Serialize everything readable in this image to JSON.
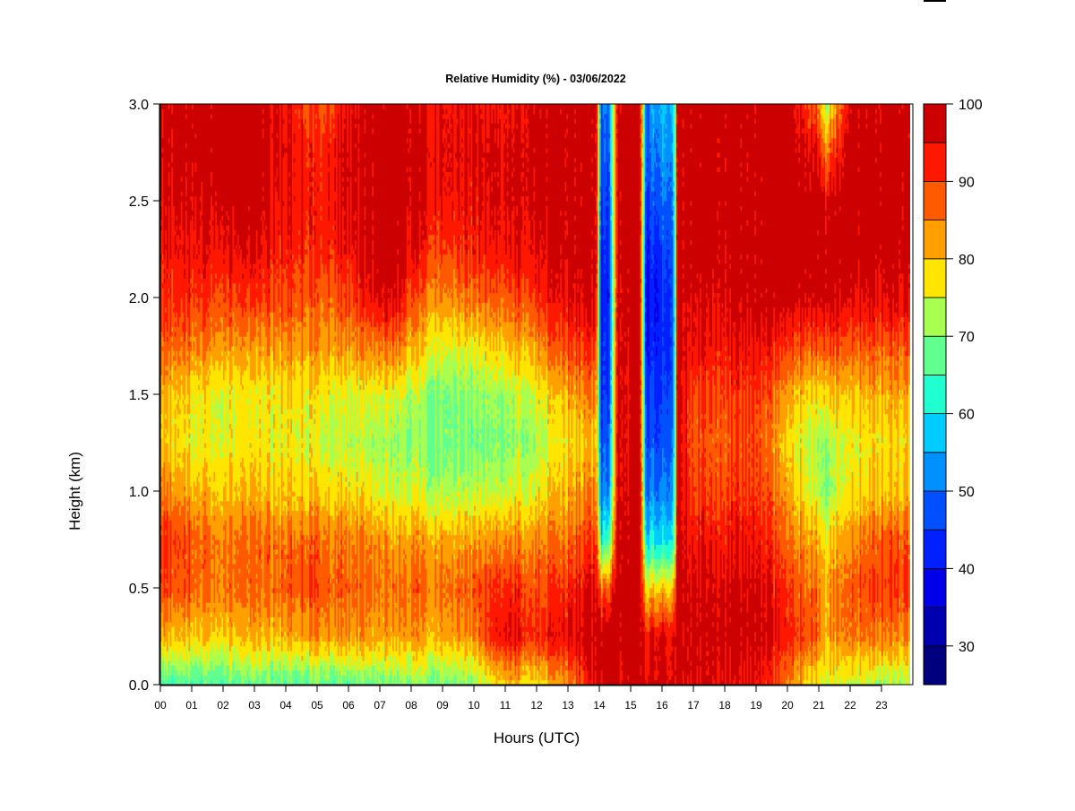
{
  "chart_data": {
    "type": "heatmap",
    "title": "Relative Humidity (%) - 03/06/2022",
    "xlabel": "Hours (UTC)",
    "ylabel": "Height (km)",
    "xlim": [
      0,
      24
    ],
    "ylim": [
      0,
      3
    ],
    "x_ticks": [
      "00",
      "01",
      "02",
      "03",
      "04",
      "05",
      "06",
      "07",
      "08",
      "09",
      "10",
      "11",
      "12",
      "13",
      "14",
      "15",
      "16",
      "17",
      "18",
      "19",
      "20",
      "21",
      "22",
      "23"
    ],
    "y_ticks": [
      "0.0",
      "0.5",
      "1.0",
      "1.5",
      "2.0",
      "2.5",
      "3.0"
    ],
    "colorbar": {
      "range": [
        25,
        100
      ],
      "levels": [
        25,
        30,
        35,
        40,
        45,
        50,
        55,
        60,
        65,
        70,
        75,
        80,
        85,
        90,
        95,
        100
      ],
      "colors": [
        "#00007f",
        "#0000b0",
        "#0000e8",
        "#0020ff",
        "#0050ff",
        "#0090ff",
        "#00ccff",
        "#20ffd0",
        "#60ff90",
        "#a8ff50",
        "#ffe500",
        "#ffa000",
        "#ff5a00",
        "#ff1800",
        "#cc0000",
        "#800000"
      ],
      "tick_labels": [
        "30",
        "40",
        "50",
        "60",
        "70",
        "80",
        "90",
        "100"
      ]
    },
    "profiles": [
      {
        "hour": 0,
        "rh": [
          66,
          82,
          90,
          92,
          86,
          80,
          82,
          88,
          92,
          94,
          96,
          98,
          98
        ]
      },
      {
        "hour": 1,
        "rh": [
          66,
          80,
          88,
          88,
          82,
          77,
          78,
          86,
          92,
          95,
          97,
          99,
          98
        ]
      },
      {
        "hour": 2,
        "rh": [
          66,
          80,
          86,
          86,
          80,
          76,
          76,
          84,
          90,
          95,
          98,
          99,
          99
        ]
      },
      {
        "hour": 3,
        "rh": [
          67,
          80,
          86,
          86,
          80,
          76,
          76,
          82,
          90,
          95,
          98,
          99,
          98
        ]
      },
      {
        "hour": 4,
        "rh": [
          67,
          82,
          88,
          86,
          80,
          77,
          78,
          84,
          90,
          93,
          95,
          96,
          95
        ]
      },
      {
        "hour": 5,
        "rh": [
          68,
          84,
          90,
          88,
          80,
          76,
          78,
          84,
          88,
          92,
          93,
          92,
          88
        ]
      },
      {
        "hour": 6,
        "rh": [
          68,
          84,
          88,
          86,
          79,
          74,
          76,
          84,
          90,
          95,
          97,
          98,
          96
        ]
      },
      {
        "hour": 7,
        "rh": [
          69,
          82,
          86,
          84,
          76,
          72,
          76,
          86,
          96,
          99,
          99,
          99,
          99
        ]
      },
      {
        "hour": 7.5,
        "rh": [
          69,
          82,
          86,
          82,
          74,
          71,
          76,
          86,
          97,
          99,
          99,
          99,
          99
        ]
      },
      {
        "hour": 8,
        "rh": [
          69,
          82,
          86,
          82,
          74,
          70,
          72,
          80,
          88,
          94,
          96,
          97,
          96
        ]
      },
      {
        "hour": 9,
        "rh": [
          69,
          82,
          86,
          82,
          73,
          69,
          70,
          76,
          84,
          90,
          94,
          96,
          94
        ]
      },
      {
        "hour": 10,
        "rh": [
          70,
          84,
          88,
          82,
          73,
          68,
          70,
          76,
          86,
          92,
          94,
          95,
          94
        ]
      },
      {
        "hour": 11,
        "rh": [
          80,
          96,
          92,
          84,
          74,
          70,
          72,
          80,
          88,
          94,
          96,
          96,
          94
        ]
      },
      {
        "hour": 12,
        "rh": [
          78,
          92,
          90,
          85,
          77,
          73,
          76,
          84,
          92,
          96,
          98,
          99,
          98
        ]
      },
      {
        "hour": 13,
        "rh": [
          84,
          96,
          92,
          86,
          82,
          78,
          82,
          90,
          96,
          99,
          99,
          99,
          99
        ]
      },
      {
        "hour": 13.9,
        "rh": [
          96,
          99,
          97,
          92,
          86,
          82,
          86,
          92,
          98,
          99,
          99,
          99,
          99
        ]
      },
      {
        "hour": 14.05,
        "rh": [
          98,
          99,
          85,
          60,
          48,
          45,
          42,
          40,
          38,
          40,
          42,
          45,
          48
        ]
      },
      {
        "hour": 14.3,
        "rh": [
          98,
          99,
          88,
          65,
          52,
          48,
          45,
          44,
          42,
          44,
          46,
          48,
          50
        ]
      },
      {
        "hour": 14.6,
        "rh": [
          98,
          99,
          99,
          99,
          99,
          99,
          99,
          99,
          99,
          99,
          99,
          99,
          99
        ]
      },
      {
        "hour": 15.0,
        "rh": [
          98,
          99,
          99,
          98,
          96,
          94,
          94,
          96,
          98,
          99,
          99,
          99,
          99
        ]
      },
      {
        "hour": 15.3,
        "rh": [
          98,
          99,
          99,
          99,
          99,
          99,
          99,
          99,
          99,
          99,
          99,
          99,
          99
        ]
      },
      {
        "hour": 15.5,
        "rh": [
          98,
          96,
          80,
          60,
          52,
          48,
          46,
          42,
          40,
          42,
          46,
          50,
          52
        ]
      },
      {
        "hour": 16.0,
        "rh": [
          97,
          95,
          78,
          58,
          50,
          46,
          44,
          42,
          42,
          44,
          48,
          52,
          55
        ]
      },
      {
        "hour": 16.35,
        "rh": [
          97,
          96,
          82,
          62,
          55,
          52,
          50,
          48,
          48,
          50,
          52,
          55,
          58
        ]
      },
      {
        "hour": 16.5,
        "rh": [
          97,
          99,
          99,
          99,
          99,
          99,
          99,
          99,
          99,
          99,
          99,
          99,
          99
        ]
      },
      {
        "hour": 17,
        "rh": [
          97,
          98,
          97,
          94,
          90,
          88,
          90,
          94,
          97,
          99,
          99,
          99,
          99
        ]
      },
      {
        "hour": 18,
        "rh": [
          96,
          98,
          97,
          94,
          90,
          88,
          90,
          94,
          97,
          99,
          99,
          99,
          99
        ]
      },
      {
        "hour": 19,
        "rh": [
          96,
          99,
          98,
          95,
          92,
          90,
          92,
          96,
          99,
          99,
          99,
          99,
          99
        ]
      },
      {
        "hour": 20,
        "rh": [
          84,
          92,
          90,
          86,
          82,
          78,
          82,
          90,
          98,
          99,
          99,
          99,
          99
        ]
      },
      {
        "hour": 21,
        "rh": [
          76,
          88,
          86,
          82,
          74,
          72,
          78,
          88,
          98,
          99,
          99,
          96,
          86
        ]
      },
      {
        "hour": 21.2,
        "rh": [
          76,
          82,
          82,
          78,
          70,
          72,
          80,
          90,
          99,
          99,
          97,
          86,
          72
        ]
      },
      {
        "hour": 22,
        "rh": [
          74,
          86,
          88,
          84,
          78,
          76,
          80,
          88,
          96,
          99,
          99,
          99,
          97
        ]
      },
      {
        "hour": 23,
        "rh": [
          72,
          86,
          90,
          88,
          80,
          78,
          82,
          88,
          96,
          99,
          99,
          99,
          98
        ]
      },
      {
        "hour": 23.9,
        "rh": [
          72,
          84,
          90,
          88,
          80,
          78,
          82,
          88,
          96,
          99,
          99,
          99,
          98
        ]
      }
    ],
    "profile_heights_km": [
      0.0,
      0.25,
      0.5,
      0.75,
      1.0,
      1.25,
      1.5,
      1.75,
      2.0,
      2.25,
      2.5,
      2.75,
      3.0
    ],
    "grid": false,
    "legend": "colorbar-right"
  }
}
